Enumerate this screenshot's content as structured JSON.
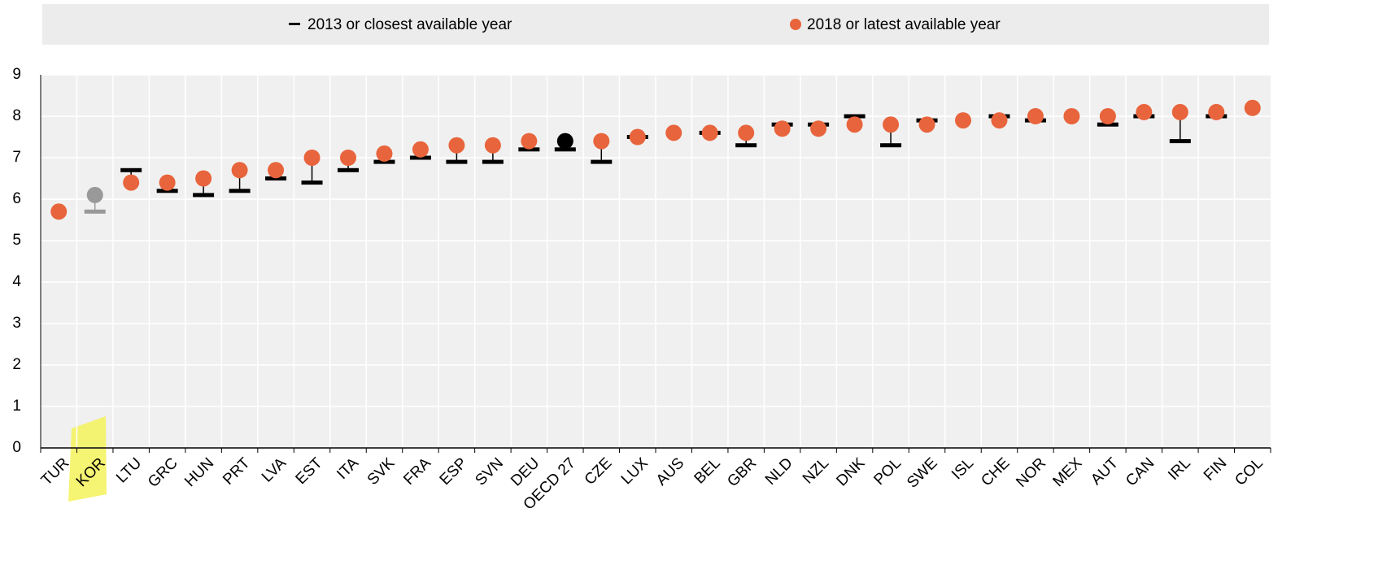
{
  "chart_data": {
    "type": "dot",
    "categories": [
      "TUR",
      "KOR",
      "LTU",
      "GRC",
      "HUN",
      "PRT",
      "LVA",
      "EST",
      "ITA",
      "SVK",
      "FRA",
      "ESP",
      "SVN",
      "DEU",
      "OECD 27",
      "CZE",
      "LUX",
      "AUS",
      "BEL",
      "GBR",
      "NLD",
      "NZL",
      "DNK",
      "POL",
      "SWE",
      "ISL",
      "CHE",
      "NOR",
      "MEX",
      "AUT",
      "CAN",
      "IRL",
      "FIN",
      "COL"
    ],
    "series": [
      {
        "name": "2013 or closest available year",
        "marker": "dash",
        "color": "#000000",
        "point_colors": [
          "#000000",
          "#999999",
          "#000000",
          "#000000",
          "#000000",
          "#000000",
          "#000000",
          "#000000",
          "#000000",
          "#000000",
          "#000000",
          "#000000",
          "#000000",
          "#000000",
          "#000000",
          "#000000",
          "#000000",
          "#000000",
          "#000000",
          "#000000",
          "#000000",
          "#000000",
          "#000000",
          "#000000",
          "#000000",
          "#000000",
          "#000000",
          "#000000",
          "#000000",
          "#000000",
          "#000000",
          "#000000",
          "#000000",
          "#000000"
        ],
        "values": [
          null,
          5.7,
          6.7,
          6.2,
          6.1,
          6.2,
          6.5,
          6.4,
          6.7,
          6.9,
          7.0,
          6.9,
          6.9,
          7.2,
          7.2,
          6.9,
          7.5,
          null,
          7.6,
          7.3,
          7.8,
          7.8,
          8.0,
          7.3,
          7.9,
          null,
          8.0,
          7.9,
          null,
          7.8,
          8.0,
          7.4,
          8.0,
          null
        ]
      },
      {
        "name": "2018 or latest available year",
        "marker": "circle",
        "color": "#e8643c",
        "point_colors": [
          "#e8643c",
          "#999999",
          "#e8643c",
          "#e8643c",
          "#e8643c",
          "#e8643c",
          "#e8643c",
          "#e8643c",
          "#e8643c",
          "#e8643c",
          "#e8643c",
          "#e8643c",
          "#e8643c",
          "#e8643c",
          "#000000",
          "#e8643c",
          "#e8643c",
          "#e8643c",
          "#e8643c",
          "#e8643c",
          "#e8643c",
          "#e8643c",
          "#e8643c",
          "#e8643c",
          "#e8643c",
          "#e8643c",
          "#e8643c",
          "#e8643c",
          "#e8643c",
          "#e8643c",
          "#e8643c",
          "#e8643c",
          "#e8643c",
          "#e8643c"
        ],
        "values": [
          5.7,
          6.1,
          6.4,
          6.4,
          6.5,
          6.7,
          6.7,
          7.0,
          7.0,
          7.1,
          7.2,
          7.3,
          7.3,
          7.4,
          7.4,
          7.4,
          7.5,
          7.6,
          7.6,
          7.6,
          7.7,
          7.7,
          7.8,
          7.8,
          7.8,
          7.9,
          7.9,
          8.0,
          8.0,
          8.0,
          8.1,
          8.1,
          8.1,
          8.2
        ]
      }
    ],
    "ylim": [
      0,
      9
    ],
    "yticks": [
      0,
      1,
      2,
      3,
      4,
      5,
      6,
      7,
      8,
      9
    ],
    "grid": true,
    "legend": "top"
  }
}
